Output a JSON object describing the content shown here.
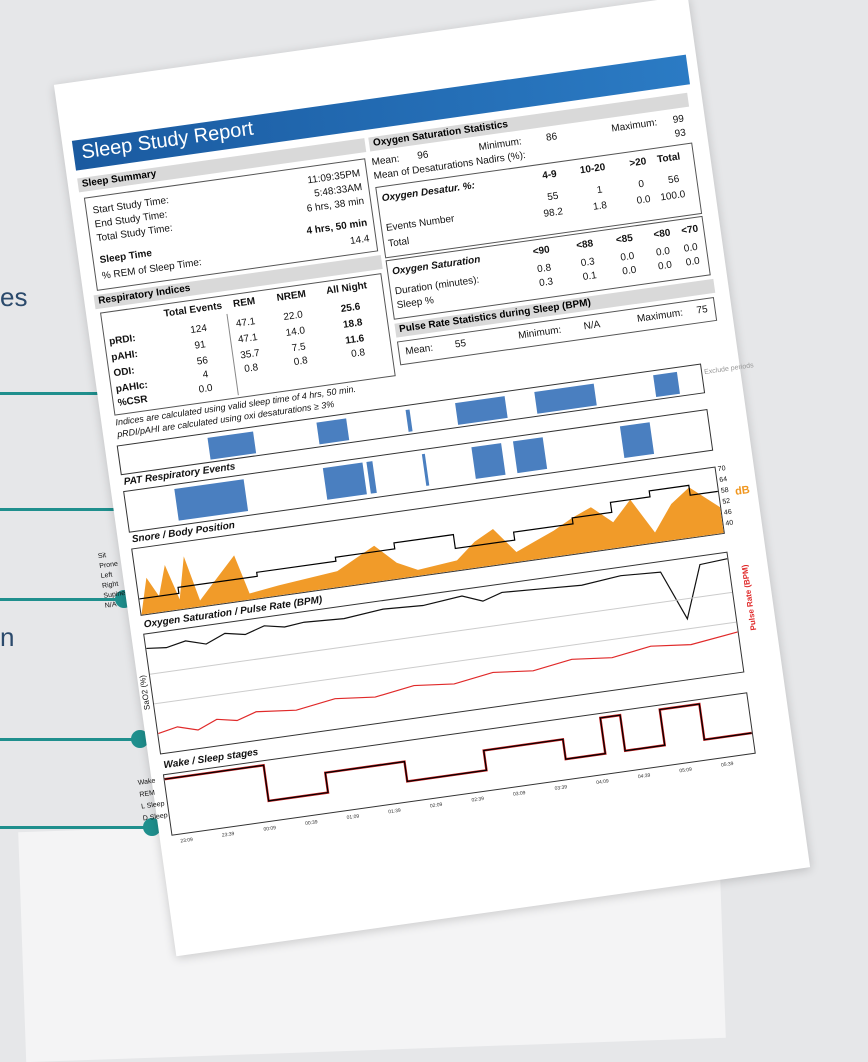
{
  "side_labels": [
    "es",
    "n"
  ],
  "report": {
    "title": "Sleep Study Report",
    "sleep_summary": {
      "header": "Sleep Summary",
      "rows": [
        {
          "label": "Start Study Time:",
          "value": "11:09:35PM"
        },
        {
          "label": "End Study Time:",
          "value": "5:48:33AM"
        },
        {
          "label": "Total Study Time:",
          "value": "6 hrs, 38 min"
        }
      ],
      "sleep_time_label": "Sleep Time",
      "sleep_time_value": "4 hrs, 50 min",
      "rem_label": "% REM of Sleep Time:",
      "rem_value": "14.4"
    },
    "respiratory": {
      "header": "Respiratory Indices",
      "columns": [
        "Total Events",
        "REM",
        "NREM",
        "All Night"
      ],
      "rows": [
        {
          "name": "pRDI:",
          "total": "124",
          "rem": "47.1",
          "nrem": "22.0",
          "all": "25.6"
        },
        {
          "name": "pAHI:",
          "total": "91",
          "rem": "47.1",
          "nrem": "14.0",
          "all": "18.8"
        },
        {
          "name": "ODI:",
          "total": "56",
          "rem": "35.7",
          "nrem": "7.5",
          "all": "11.6"
        },
        {
          "name": "pAHIc:",
          "total": "4",
          "rem": "0.8",
          "nrem": "0.8",
          "all": "0.8"
        },
        {
          "name": "%CSR",
          "total": "0.0",
          "rem": "",
          "nrem": "",
          "all": ""
        }
      ],
      "note1": "Indices are calculated using valid sleep time of 4 hrs, 50 min.",
      "note2": "pRDI/pAHI are calculated using oxi desaturations ≥ 3%"
    },
    "oxygen": {
      "header": "Oxygen Saturation Statistics",
      "mean_label": "Mean:",
      "mean": "96",
      "min_label": "Minimum:",
      "min": "86",
      "max_label": "Maximum:",
      "max": "99",
      "nadirs_label": "Mean of Desaturations Nadirs (%):",
      "nadirs": "93",
      "desat_label": "Oxygen Desatur. %:",
      "desat_cols": [
        "4-9",
        "10-20",
        ">20",
        "Total"
      ],
      "events_label": "Events Number",
      "events": [
        "55",
        "1",
        "0",
        "56"
      ],
      "total_label": "Total",
      "total": [
        "98.2",
        "1.8",
        "0.0",
        "100.0"
      ],
      "sat_label": "Oxygen Saturation",
      "sat_cols": [
        "<90",
        "<88",
        "<85",
        "<80",
        "<70"
      ],
      "duration_label": "Duration (minutes):",
      "duration": [
        "0.8",
        "0.3",
        "0.0",
        "0.0",
        "0.0"
      ],
      "sleep_pct_label": "Sleep %",
      "sleep_pct": [
        "0.3",
        "0.1",
        "0.0",
        "0.0",
        "0.0"
      ]
    },
    "pulse": {
      "header": "Pulse Rate Statistics during Sleep (BPM)",
      "mean_label": "Mean:",
      "mean": "55",
      "min_label": "Minimum:",
      "min": "N/A",
      "max_label": "Maximum:",
      "max": "75"
    },
    "charts": {
      "exclude_label": "Exclude periods",
      "pat_title": "PAT Respiratory Events",
      "snore_title": "Snore / Body Position",
      "snore_axis": [
        "70",
        "64",
        "58",
        "52",
        "46",
        "40"
      ],
      "db_label": "dB",
      "positions": [
        "Sit",
        "Prone",
        "Left",
        "Right",
        "Supine",
        "N/A"
      ],
      "oxy_title": "Oxygen Saturation / Pulse Rate (BPM)",
      "sao2_label": "SaO2 (%)",
      "pulse_label": "Pulse Rate (BPM)",
      "stages_title": "Wake / Sleep stages",
      "stages": [
        "Wake",
        "REM",
        "L Sleep",
        "D Sleep"
      ],
      "times": [
        "23:09",
        "23:39",
        "00:09",
        "00:39",
        "01:09",
        "01:39",
        "02:09",
        "02:39",
        "03:09",
        "03:39",
        "04:09",
        "04:39",
        "05:09",
        "05:39"
      ]
    }
  },
  "colors": {
    "accent": "#1f8f8d",
    "header_blue": "#1a5aa0",
    "snore": "#f0961e",
    "pulse": "#e02a2a",
    "events": "#4a7fc0"
  }
}
